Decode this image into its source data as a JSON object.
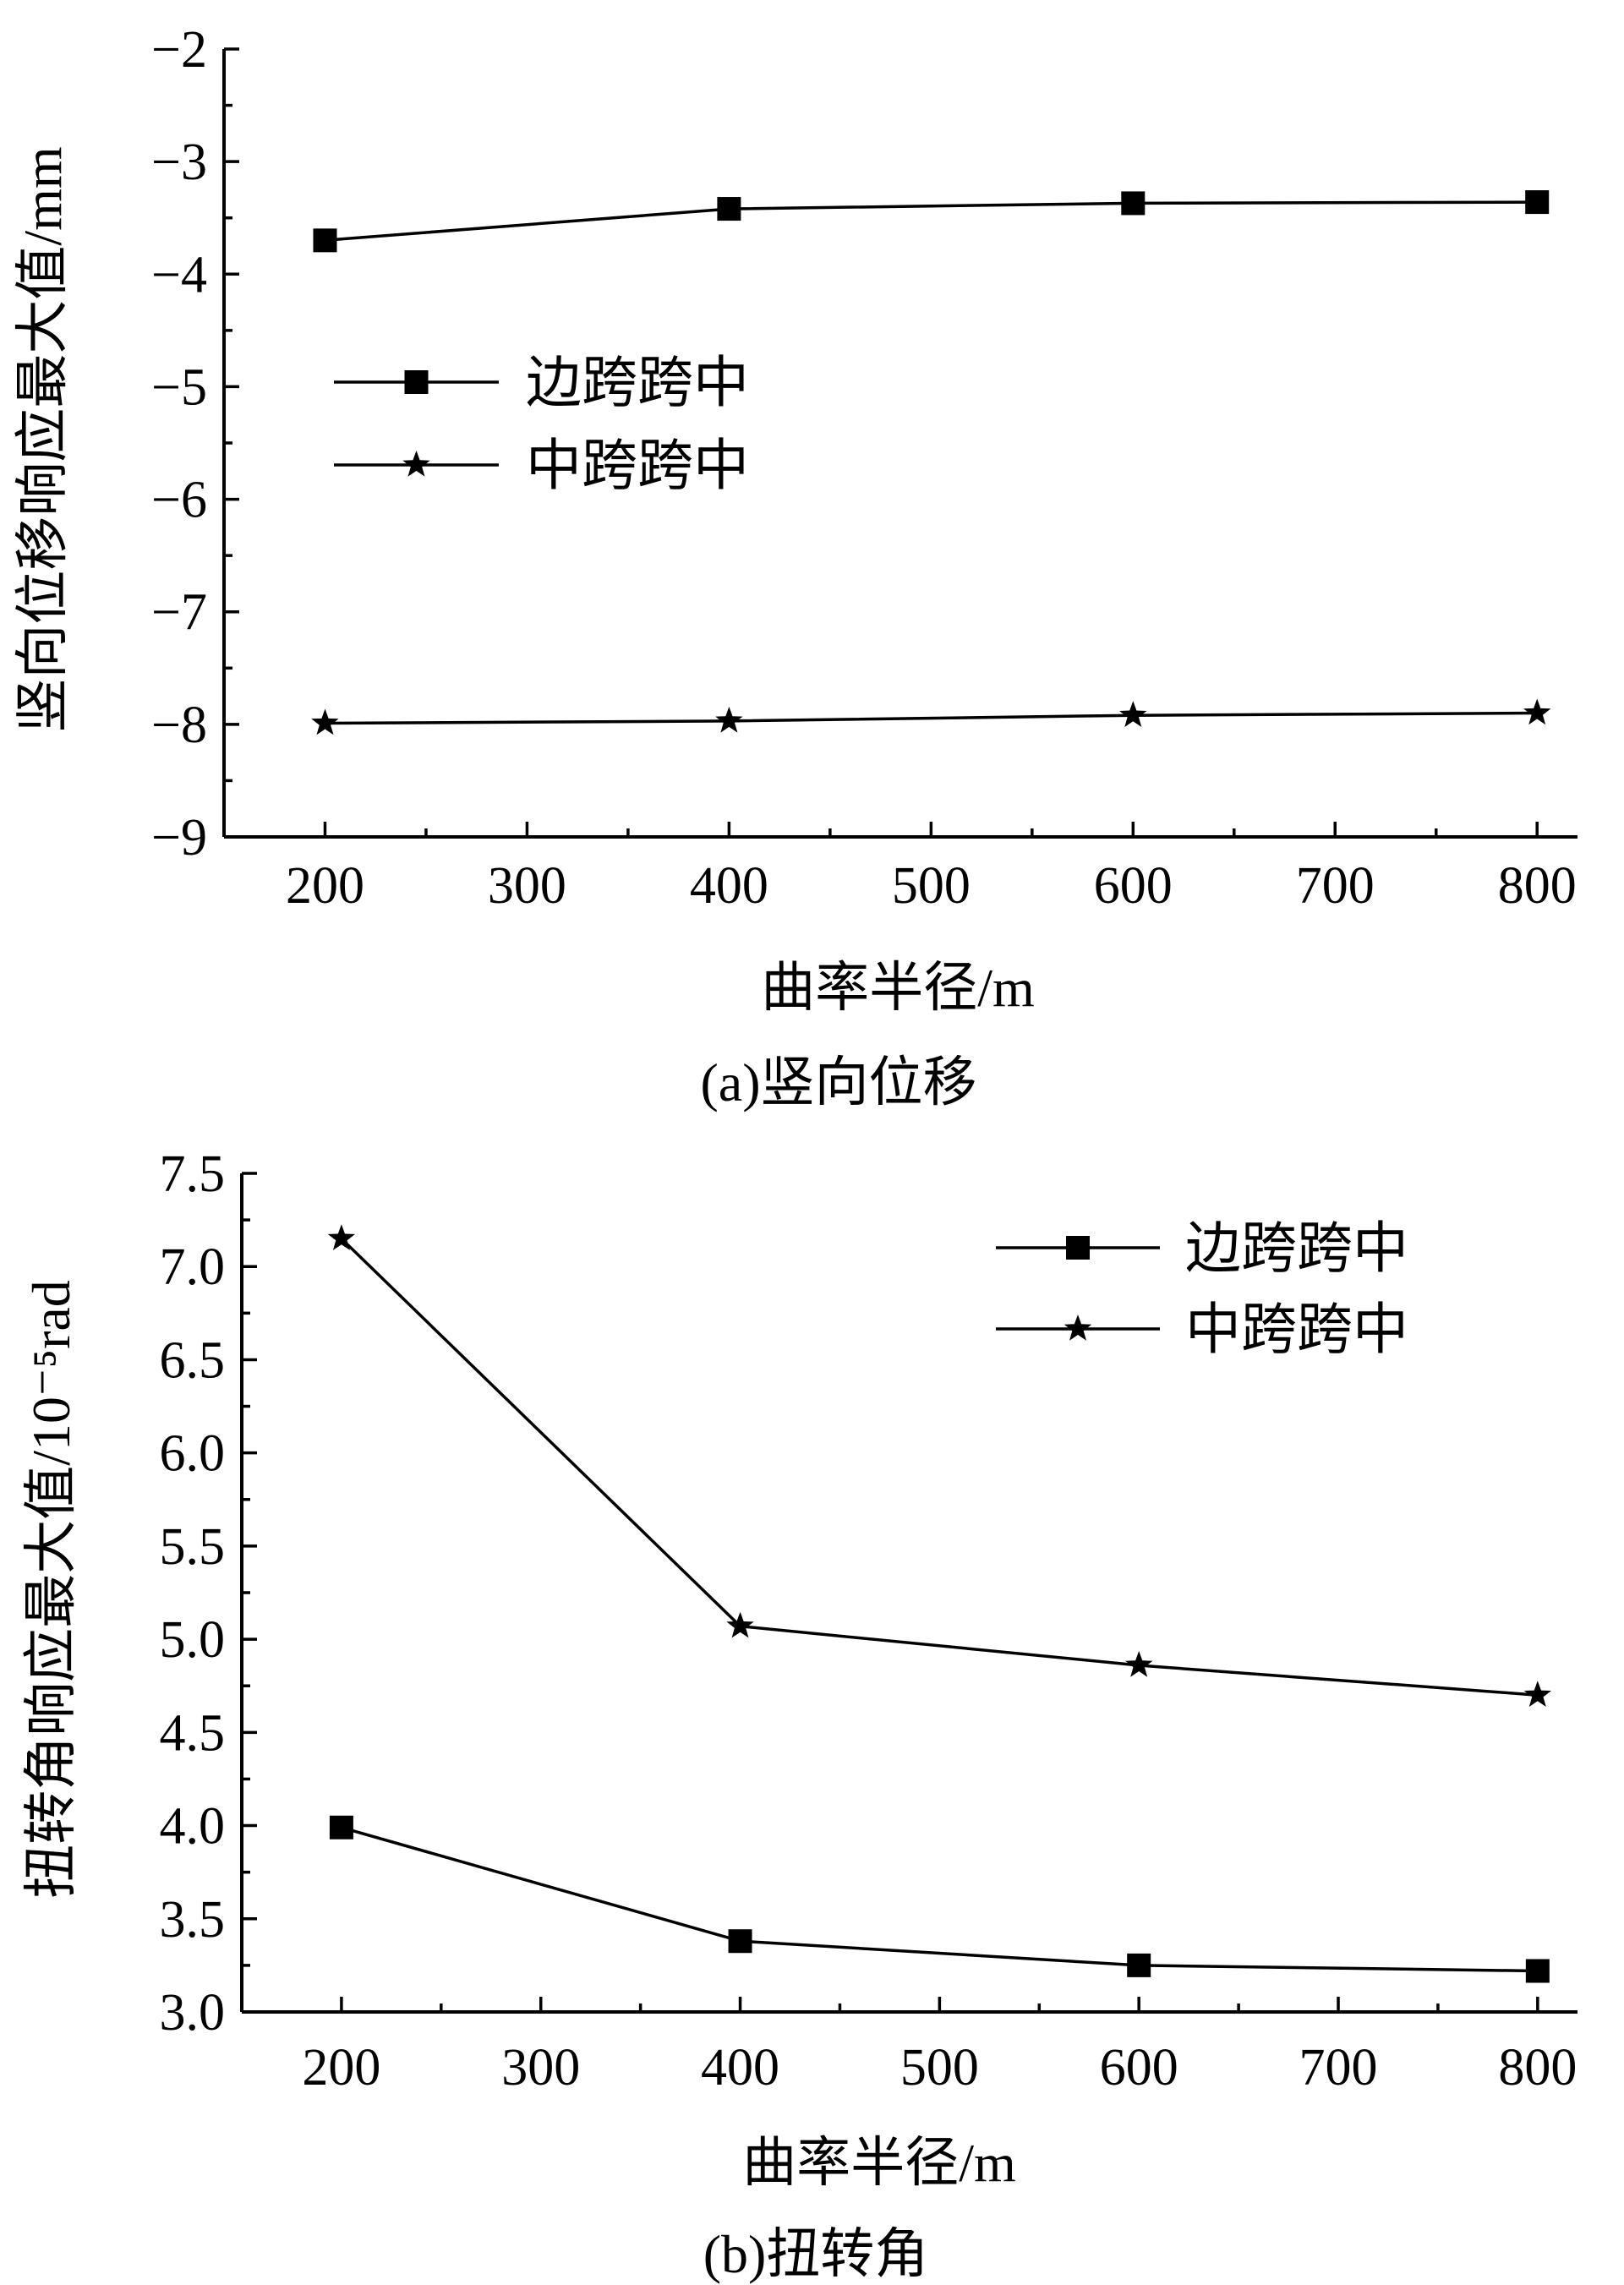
{
  "chart_data": [
    {
      "type": "line",
      "caption": "(a)竖向位移",
      "xlabel": "曲率半径/m",
      "ylabel": "竖向位移响应最大值/mm",
      "x": [
        200,
        400,
        600,
        800
      ],
      "xlim": [
        150,
        820
      ],
      "xticks": [
        200,
        300,
        400,
        500,
        600,
        700,
        800
      ],
      "ylim": [
        -9,
        -2
      ],
      "yticks": [
        -2,
        -3,
        -4,
        -5,
        -6,
        -7,
        -8,
        -9
      ],
      "ytick_labels": [
        "−2",
        "−3",
        "−4",
        "−5",
        "−6",
        "−7",
        "−8",
        "−9"
      ],
      "legend_position": "middle-left",
      "series": [
        {
          "name": "边跨跨中",
          "marker": "square",
          "values": [
            -3.7,
            -3.42,
            -3.37,
            -3.36
          ]
        },
        {
          "name": "中跨跨中",
          "marker": "star",
          "values": [
            -7.99,
            -7.97,
            -7.92,
            -7.9
          ]
        }
      ]
    },
    {
      "type": "line",
      "caption": "(b)扭转角",
      "xlabel": "曲率半径/m",
      "ylabel": "扭转角响应最大值/10⁻⁵rad",
      "x": [
        200,
        400,
        600,
        800
      ],
      "xlim": [
        150,
        820
      ],
      "xticks": [
        200,
        300,
        400,
        500,
        600,
        700,
        800
      ],
      "ylim": [
        3.0,
        7.5
      ],
      "yticks": [
        3.0,
        3.5,
        4.0,
        4.5,
        5.0,
        5.5,
        6.0,
        6.5,
        7.0,
        7.5
      ],
      "ytick_labels": [
        "3.0",
        "3.5",
        "4.0",
        "4.5",
        "5.0",
        "5.5",
        "6.0",
        "6.5",
        "7.0",
        "7.5"
      ],
      "legend_position": "top-right",
      "series": [
        {
          "name": "边跨跨中",
          "marker": "square",
          "values": [
            3.99,
            3.38,
            3.25,
            3.22
          ]
        },
        {
          "name": "中跨跨中",
          "marker": "star",
          "values": [
            7.15,
            5.07,
            4.86,
            4.7
          ]
        }
      ]
    }
  ]
}
